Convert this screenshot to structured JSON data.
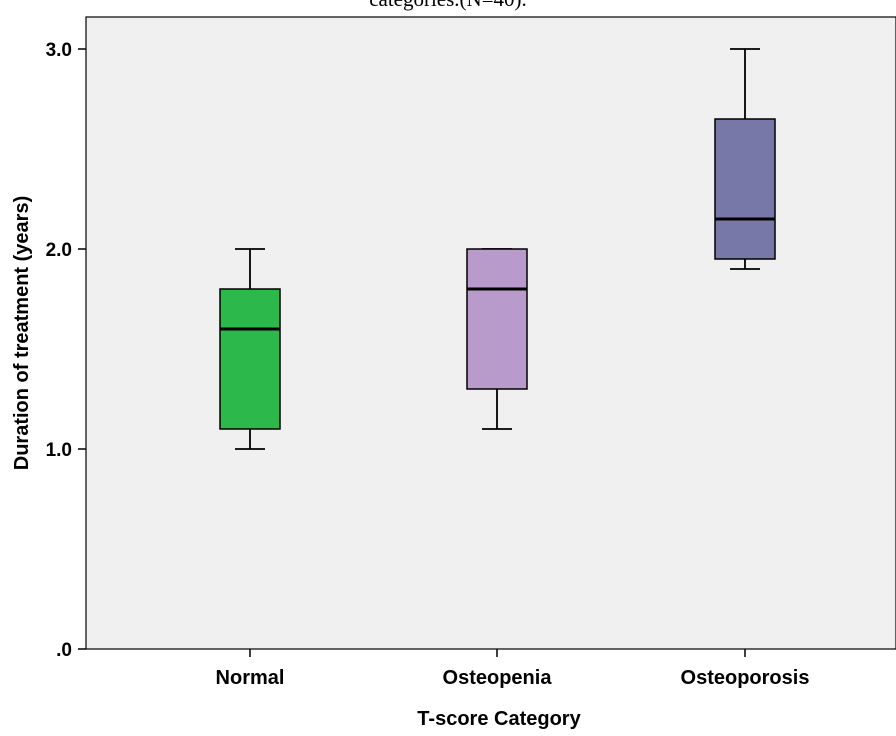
{
  "caption": "categories.(N=40).",
  "colors": {
    "plot_background": "#f0f0f0",
    "box_normal": "#2db84b",
    "box_osteopenia": "#b89acb",
    "box_osteoporosis": "#7878a8"
  },
  "chart_data": {
    "type": "box",
    "title": "",
    "xlabel": "T-score Category",
    "ylabel": "Duration of treatment (years)",
    "ylim": [
      0,
      3.0
    ],
    "yticks": [
      0,
      1.0,
      2.0,
      3.0
    ],
    "ytick_labels": [
      ".0",
      "1.0",
      "2.0",
      "3.0"
    ],
    "grid": false,
    "categories": [
      "Normal",
      "Osteopenia",
      "Osteoporosis"
    ],
    "boxes": [
      {
        "category": "Normal",
        "min": 1.0,
        "q1": 1.1,
        "median": 1.6,
        "q3": 1.8,
        "max": 2.0,
        "color": "#2db84b"
      },
      {
        "category": "Osteopenia",
        "min": 1.1,
        "q1": 1.3,
        "median": 1.8,
        "q3": 2.0,
        "max": 2.0,
        "color": "#b89acb"
      },
      {
        "category": "Osteoporosis",
        "min": 1.9,
        "q1": 1.95,
        "median": 2.15,
        "q3": 2.65,
        "max": 3.0,
        "color": "#7878a8"
      }
    ]
  }
}
